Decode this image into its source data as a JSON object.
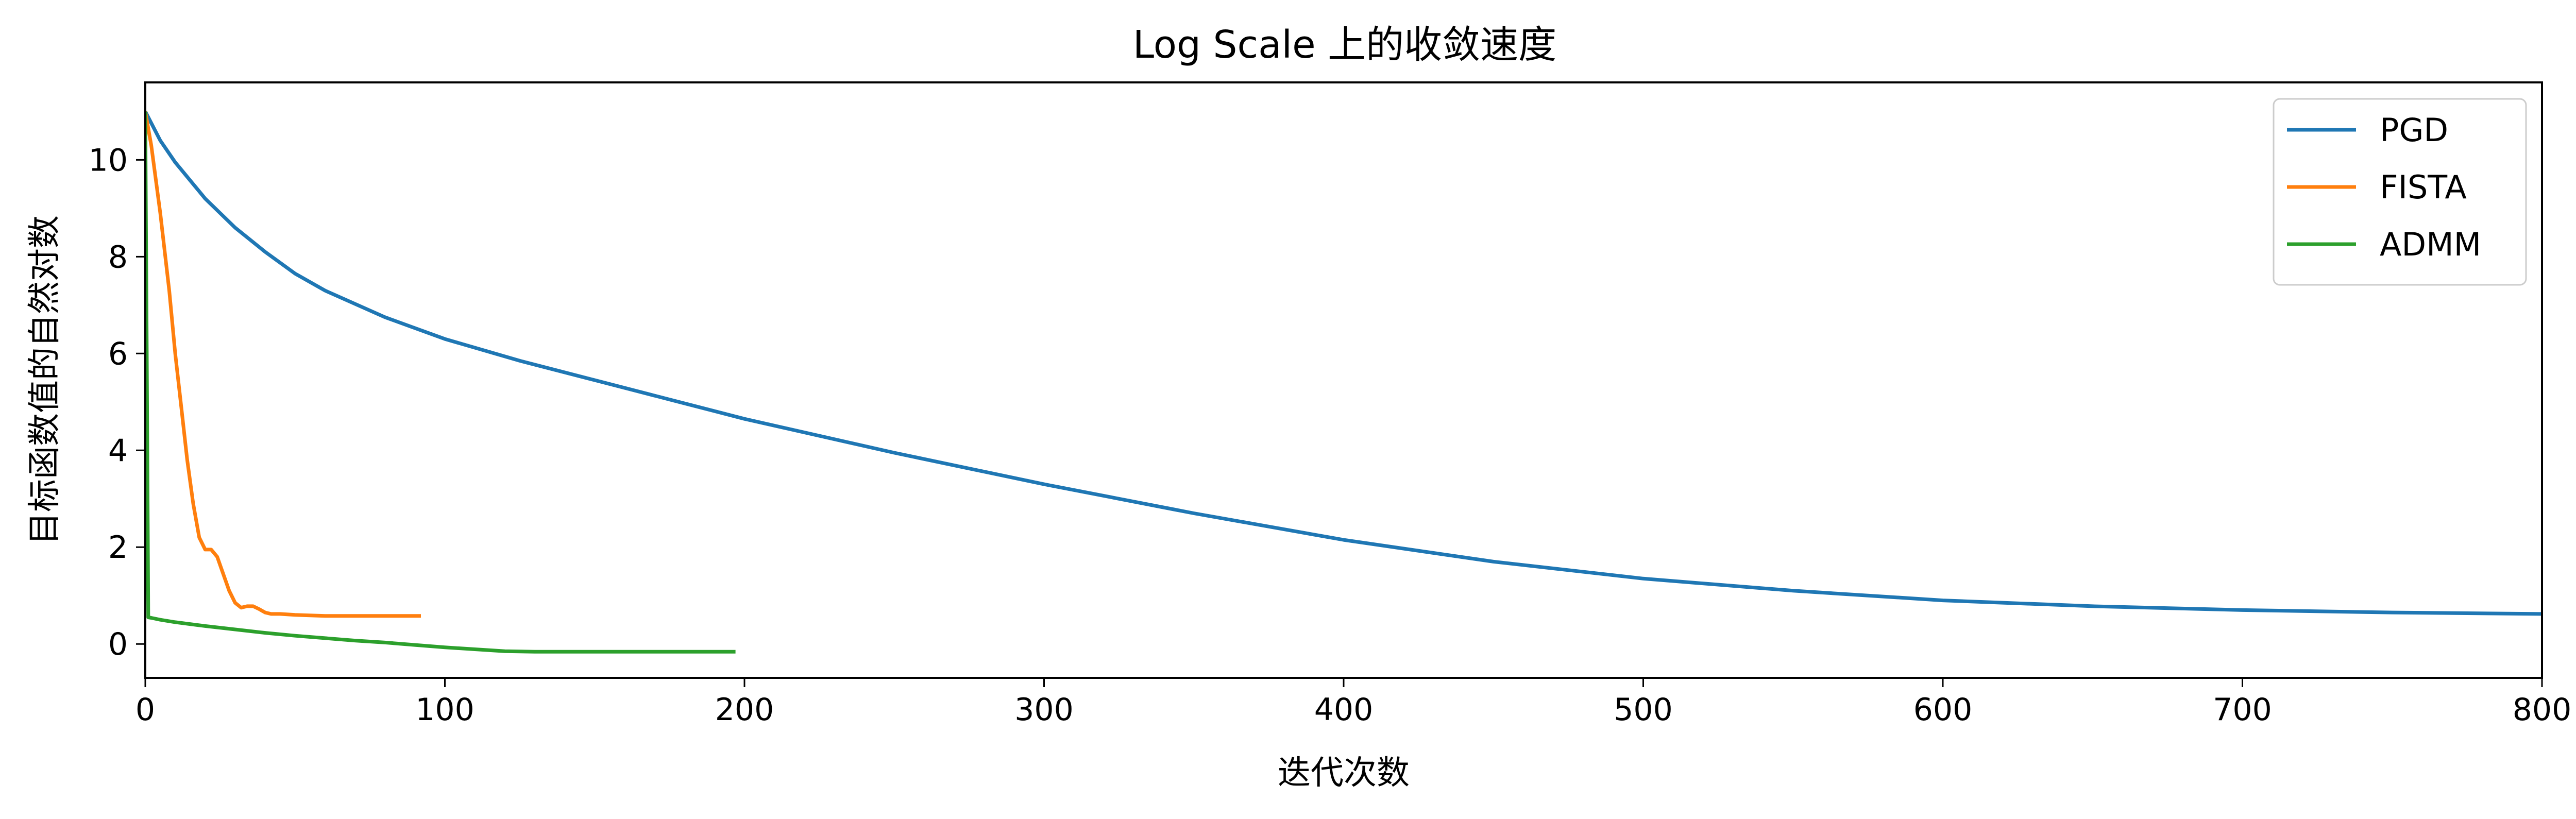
{
  "chart_data": {
    "type": "line",
    "title": "Log Scale 上的收敛速度",
    "xlabel": "迭代次数",
    "ylabel": "目标函数值的自然对数",
    "xlim": [
      0,
      800
    ],
    "ylim": [
      -0.7,
      11.6
    ],
    "xticks": [
      0,
      100,
      200,
      300,
      400,
      500,
      600,
      700,
      800
    ],
    "yticks": [
      0,
      2,
      4,
      6,
      8,
      10
    ],
    "grid": false,
    "legend_position": "top-right",
    "series": [
      {
        "name": "PGD",
        "color": "#1f77b4",
        "x": [
          0,
          5,
          10,
          20,
          30,
          40,
          50,
          60,
          80,
          100,
          125,
          150,
          175,
          200,
          250,
          300,
          350,
          400,
          450,
          500,
          550,
          600,
          650,
          700,
          750,
          800
        ],
        "y": [
          11.0,
          10.4,
          9.95,
          9.2,
          8.6,
          8.1,
          7.65,
          7.3,
          6.75,
          6.3,
          5.85,
          5.45,
          5.05,
          4.65,
          3.95,
          3.3,
          2.7,
          2.15,
          1.7,
          1.35,
          1.1,
          0.9,
          0.78,
          0.7,
          0.65,
          0.62
        ]
      },
      {
        "name": "FISTA",
        "color": "#ff7f0e",
        "x": [
          0,
          2,
          5,
          8,
          10,
          12,
          14,
          16,
          18,
          20,
          22,
          24,
          26,
          28,
          30,
          32,
          34,
          36,
          38,
          40,
          42,
          45,
          50,
          55,
          60,
          70,
          80,
          92
        ],
        "y": [
          11.0,
          10.3,
          8.9,
          7.3,
          6.0,
          4.9,
          3.8,
          2.9,
          2.2,
          1.95,
          1.95,
          1.8,
          1.45,
          1.1,
          0.85,
          0.75,
          0.78,
          0.78,
          0.72,
          0.65,
          0.62,
          0.62,
          0.6,
          0.59,
          0.58,
          0.58,
          0.58,
          0.58
        ]
      },
      {
        "name": "ADMM",
        "color": "#2ca02c",
        "x": [
          0,
          0.5,
          1,
          2,
          5,
          10,
          20,
          30,
          40,
          50,
          60,
          70,
          80,
          90,
          100,
          110,
          120,
          130,
          140,
          160,
          180,
          197
        ],
        "y": [
          11.0,
          6.0,
          0.55,
          0.54,
          0.5,
          0.45,
          0.37,
          0.3,
          0.23,
          0.17,
          0.12,
          0.07,
          0.03,
          -0.02,
          -0.07,
          -0.11,
          -0.15,
          -0.16,
          -0.16,
          -0.16,
          -0.16,
          -0.16
        ]
      }
    ]
  }
}
